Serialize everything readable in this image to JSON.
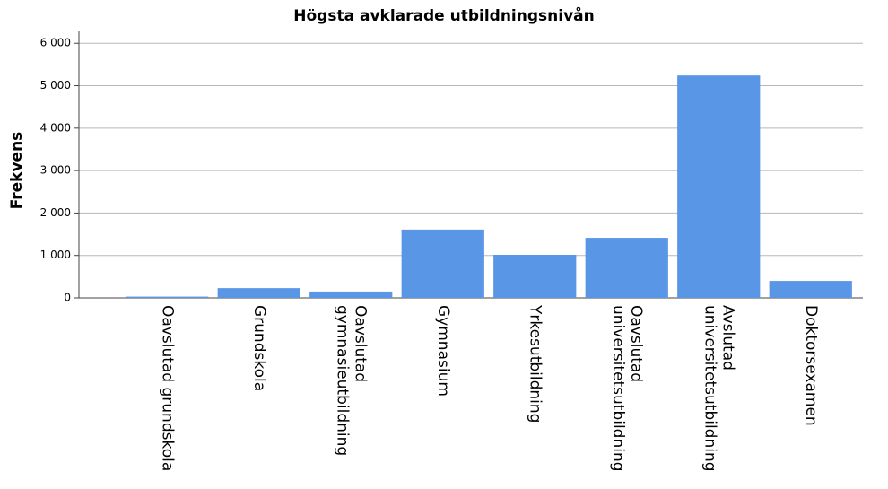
{
  "chart_data": {
    "type": "bar",
    "title": "Högsta avklarade utbildningsnivån",
    "y_label": "Frekvens",
    "categories": [
      "Oavslutad grundskola",
      "Grundskola",
      "Oavslutad gymnasieutbildning",
      "Gymnasium",
      "Yrkesutbildning",
      "Oavslutad universitetsutbildning",
      "Avslutad universitetsutbildning",
      "Doktorsexamen"
    ],
    "values": [
      30,
      230,
      150,
      1610,
      1015,
      1415,
      5240,
      400
    ],
    "color": "#5a96e6",
    "ylim": [
      0,
      6280
    ],
    "yticks": [
      0,
      {
        "value": 1000,
        "label": "1 000"
      },
      {
        "value": 2000,
        "label": "2 000"
      },
      {
        "value": 3000,
        "label": "3 000"
      },
      {
        "value": 4000,
        "label": "4 000"
      },
      {
        "value": 5000,
        "label": "5 000"
      },
      {
        "value": 6000,
        "label": "6 000"
      }
    ],
    "grid": true
  }
}
